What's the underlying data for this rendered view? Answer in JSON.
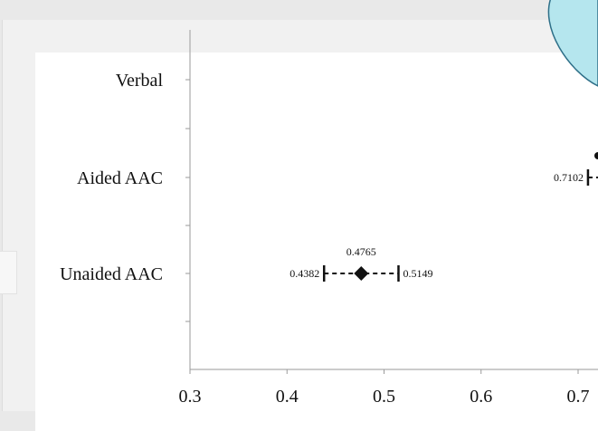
{
  "chart_data": {
    "type": "forest",
    "categories": [
      "Verbal",
      "Aided AAC",
      "Unaided AAC"
    ],
    "points": [
      {
        "category": "Unaided AAC",
        "estimate": 0.4765,
        "lower": 0.4382,
        "upper": 0.5149,
        "labels": {
          "estimate": "0.4765",
          "lower": "0.4382",
          "upper": "0.5149"
        }
      },
      {
        "category": "Aided AAC",
        "lower": 0.7102,
        "labels": {
          "lower": "0.7102"
        }
      }
    ],
    "x_ticks": [
      0.3,
      0.4,
      0.5,
      0.6,
      0.7
    ],
    "x_tick_labels": [
      "0.3",
      "0.4",
      "0.5",
      "0.6",
      "0.7"
    ],
    "xlim": [
      0.3,
      0.7
    ],
    "xlabel": "",
    "ylabel": "",
    "grid": false,
    "line_style": "dashed",
    "marker": "diamond",
    "colors": {
      "ink": "#111111",
      "bubble_fill": "#b5e6ee",
      "bubble_stroke": "#2e6f88"
    }
  }
}
